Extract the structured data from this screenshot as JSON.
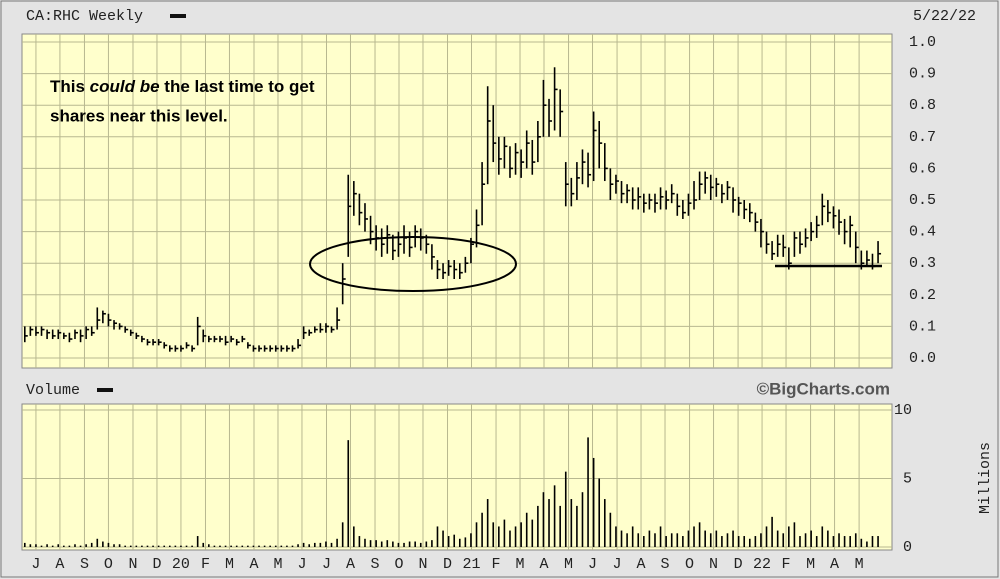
{
  "header": {
    "symbol": "CA:RHC Weekly",
    "date": "5/22/22"
  },
  "annotation": {
    "before": "This ",
    "emphasis": "could be",
    "after": " the last time to get",
    "line2": "shares near this level."
  },
  "chart_data": [
    {
      "type": "hlc",
      "color": "#000000",
      "background": "#ffffcc",
      "grid": true,
      "xlim": [
        0,
        156
      ],
      "ylim": [
        0,
        1
      ],
      "yticks": [
        {
          "value": 0,
          "label": "0.0"
        },
        0.1,
        0.2,
        0.3,
        0.4,
        0.5,
        0.6,
        0.7,
        0.8,
        0.9,
        {
          "value": 1,
          "label": "1.0"
        }
      ],
      "high": [
        0.1,
        0.1,
        0.1,
        0.1,
        0.09,
        0.09,
        0.09,
        0.08,
        0.08,
        0.09,
        0.09,
        0.1,
        0.1,
        0.16,
        0.15,
        0.14,
        0.12,
        0.11,
        0.1,
        0.09,
        0.08,
        0.07,
        0.06,
        0.06,
        0.06,
        0.05,
        0.04,
        0.04,
        0.04,
        0.05,
        0.04,
        0.13,
        0.09,
        0.07,
        0.07,
        0.07,
        0.07,
        0.07,
        0.06,
        0.07,
        0.05,
        0.04,
        0.04,
        0.04,
        0.04,
        0.04,
        0.04,
        0.04,
        0.04,
        0.06,
        0.1,
        0.09,
        0.1,
        0.11,
        0.11,
        0.1,
        0.16,
        0.3,
        0.58,
        0.56,
        0.52,
        0.49,
        0.45,
        0.42,
        0.41,
        0.42,
        0.39,
        0.4,
        0.42,
        0.4,
        0.42,
        0.41,
        0.39,
        0.36,
        0.31,
        0.3,
        0.31,
        0.31,
        0.3,
        0.32,
        0.38,
        0.47,
        0.62,
        0.86,
        0.8,
        0.7,
        0.7,
        0.67,
        0.68,
        0.66,
        0.72,
        0.69,
        0.75,
        0.88,
        0.82,
        0.92,
        0.85,
        0.62,
        0.57,
        0.62,
        0.66,
        0.65,
        0.78,
        0.75,
        0.68,
        0.6,
        0.58,
        0.56,
        0.55,
        0.54,
        0.54,
        0.52,
        0.52,
        0.52,
        0.54,
        0.53,
        0.55,
        0.52,
        0.5,
        0.52,
        0.56,
        0.59,
        0.59,
        0.58,
        0.57,
        0.55,
        0.56,
        0.54,
        0.51,
        0.5,
        0.49,
        0.46,
        0.44,
        0.4,
        0.37,
        0.39,
        0.39,
        0.35,
        0.4,
        0.4,
        0.41,
        0.43,
        0.45,
        0.52,
        0.5,
        0.48,
        0.47,
        0.44,
        0.45,
        0.4,
        0.34,
        0.34,
        0.33,
        0.37
      ],
      "low": [
        0.05,
        0.07,
        0.07,
        0.07,
        0.06,
        0.06,
        0.06,
        0.06,
        0.05,
        0.06,
        0.05,
        0.06,
        0.07,
        0.09,
        0.11,
        0.1,
        0.09,
        0.09,
        0.08,
        0.07,
        0.06,
        0.05,
        0.04,
        0.04,
        0.04,
        0.03,
        0.02,
        0.02,
        0.02,
        0.03,
        0.02,
        0.04,
        0.05,
        0.05,
        0.05,
        0.05,
        0.04,
        0.05,
        0.04,
        0.05,
        0.03,
        0.02,
        0.02,
        0.02,
        0.02,
        0.02,
        0.02,
        0.02,
        0.02,
        0.03,
        0.06,
        0.07,
        0.08,
        0.08,
        0.08,
        0.08,
        0.09,
        0.17,
        0.32,
        0.45,
        0.42,
        0.4,
        0.36,
        0.34,
        0.32,
        0.33,
        0.31,
        0.32,
        0.33,
        0.32,
        0.35,
        0.34,
        0.33,
        0.28,
        0.25,
        0.25,
        0.26,
        0.25,
        0.25,
        0.27,
        0.3,
        0.35,
        0.42,
        0.55,
        0.62,
        0.58,
        0.6,
        0.57,
        0.58,
        0.57,
        0.6,
        0.58,
        0.62,
        0.7,
        0.7,
        0.72,
        0.7,
        0.48,
        0.48,
        0.5,
        0.55,
        0.54,
        0.56,
        0.6,
        0.56,
        0.5,
        0.52,
        0.49,
        0.49,
        0.47,
        0.47,
        0.46,
        0.47,
        0.46,
        0.47,
        0.47,
        0.49,
        0.45,
        0.44,
        0.45,
        0.47,
        0.5,
        0.52,
        0.5,
        0.51,
        0.49,
        0.5,
        0.46,
        0.45,
        0.44,
        0.43,
        0.4,
        0.35,
        0.33,
        0.31,
        0.32,
        0.32,
        0.28,
        0.32,
        0.33,
        0.35,
        0.37,
        0.38,
        0.42,
        0.43,
        0.41,
        0.39,
        0.36,
        0.35,
        0.3,
        0.28,
        0.29,
        0.28,
        0.3
      ],
      "close": [
        0.07,
        0.09,
        0.08,
        0.09,
        0.08,
        0.07,
        0.08,
        0.07,
        0.06,
        0.08,
        0.07,
        0.09,
        0.08,
        0.12,
        0.14,
        0.12,
        0.11,
        0.1,
        0.09,
        0.08,
        0.07,
        0.06,
        0.05,
        0.05,
        0.05,
        0.04,
        0.03,
        0.03,
        0.03,
        0.04,
        0.03,
        0.1,
        0.07,
        0.06,
        0.06,
        0.06,
        0.05,
        0.06,
        0.05,
        0.06,
        0.04,
        0.03,
        0.03,
        0.03,
        0.03,
        0.03,
        0.03,
        0.03,
        0.03,
        0.04,
        0.08,
        0.08,
        0.09,
        0.09,
        0.1,
        0.09,
        0.12,
        0.25,
        0.48,
        0.52,
        0.46,
        0.44,
        0.4,
        0.38,
        0.36,
        0.39,
        0.34,
        0.36,
        0.38,
        0.35,
        0.4,
        0.38,
        0.36,
        0.32,
        0.28,
        0.27,
        0.29,
        0.28,
        0.27,
        0.3,
        0.36,
        0.42,
        0.55,
        0.75,
        0.68,
        0.63,
        0.67,
        0.6,
        0.65,
        0.62,
        0.68,
        0.62,
        0.7,
        0.8,
        0.75,
        0.85,
        0.78,
        0.55,
        0.52,
        0.57,
        0.62,
        0.58,
        0.72,
        0.68,
        0.6,
        0.55,
        0.56,
        0.52,
        0.53,
        0.5,
        0.51,
        0.49,
        0.5,
        0.49,
        0.51,
        0.5,
        0.52,
        0.48,
        0.46,
        0.49,
        0.5,
        0.55,
        0.57,
        0.54,
        0.55,
        0.52,
        0.54,
        0.5,
        0.49,
        0.47,
        0.46,
        0.43,
        0.4,
        0.36,
        0.33,
        0.36,
        0.35,
        0.3,
        0.38,
        0.36,
        0.38,
        0.4,
        0.42,
        0.48,
        0.46,
        0.45,
        0.43,
        0.4,
        0.42,
        0.35,
        0.3,
        0.31,
        0.29,
        0.33
      ]
    },
    {
      "type": "bar",
      "title": "Volume",
      "source": "©BigCharts.com",
      "ylabel": "Millions",
      "color": "#000000",
      "background": "#ffffcc",
      "grid": true,
      "xlim": [
        0,
        156
      ],
      "ylim": [
        0,
        10
      ],
      "yticks": [
        0,
        5,
        10
      ],
      "xticks": [
        {
          "value": 2.5,
          "label": "J"
        },
        {
          "value": 6.8,
          "label": "A"
        },
        {
          "value": 11.2,
          "label": "S"
        },
        {
          "value": 15.5,
          "label": "O"
        },
        {
          "value": 19.9,
          "label": "N"
        },
        {
          "value": 24.2,
          "label": "D"
        },
        {
          "value": 28.5,
          "label": "20"
        },
        {
          "value": 32.9,
          "label": "F"
        },
        {
          "value": 37.2,
          "label": "M"
        },
        {
          "value": 41.6,
          "label": "A"
        },
        {
          "value": 45.9,
          "label": "M"
        },
        {
          "value": 50.2,
          "label": "J"
        },
        {
          "value": 54.6,
          "label": "J"
        },
        {
          "value": 58.9,
          "label": "A"
        },
        {
          "value": 63.3,
          "label": "S"
        },
        {
          "value": 67.6,
          "label": "O"
        },
        {
          "value": 71.9,
          "label": "N"
        },
        {
          "value": 76.3,
          "label": "D"
        },
        {
          "value": 80.6,
          "label": "21"
        },
        {
          "value": 85.0,
          "label": "F"
        },
        {
          "value": 89.3,
          "label": "M"
        },
        {
          "value": 93.6,
          "label": "A"
        },
        {
          "value": 98.0,
          "label": "M"
        },
        {
          "value": 102.3,
          "label": "J"
        },
        {
          "value": 106.7,
          "label": "J"
        },
        {
          "value": 111.0,
          "label": "A"
        },
        {
          "value": 115.3,
          "label": "S"
        },
        {
          "value": 119.7,
          "label": "O"
        },
        {
          "value": 124.0,
          "label": "N"
        },
        {
          "value": 128.4,
          "label": "D"
        },
        {
          "value": 132.7,
          "label": "22"
        },
        {
          "value": 137.0,
          "label": "F"
        },
        {
          "value": 141.4,
          "label": "M"
        },
        {
          "value": 145.7,
          "label": "A"
        },
        {
          "value": 150.1,
          "label": "M"
        }
      ],
      "values": [
        0.3,
        0.2,
        0.2,
        0.1,
        0.2,
        0.1,
        0.2,
        0.1,
        0.1,
        0.2,
        0.1,
        0.2,
        0.3,
        0.6,
        0.4,
        0.3,
        0.2,
        0.2,
        0.1,
        0.1,
        0.1,
        0.1,
        0.1,
        0.1,
        0.1,
        0.1,
        0.1,
        0.1,
        0.1,
        0.1,
        0.1,
        0.8,
        0.3,
        0.2,
        0.1,
        0.1,
        0.1,
        0.1,
        0.1,
        0.1,
        0.1,
        0.1,
        0.1,
        0.1,
        0.1,
        0.1,
        0.1,
        0.1,
        0.1,
        0.2,
        0.3,
        0.2,
        0.3,
        0.3,
        0.4,
        0.3,
        0.6,
        1.8,
        7.8,
        1.5,
        0.8,
        0.6,
        0.5,
        0.5,
        0.4,
        0.5,
        0.4,
        0.3,
        0.3,
        0.4,
        0.4,
        0.3,
        0.4,
        0.5,
        1.5,
        1.2,
        0.8,
        0.9,
        0.6,
        0.7,
        1.0,
        1.8,
        2.5,
        3.5,
        1.8,
        1.5,
        2.0,
        1.2,
        1.5,
        1.8,
        2.5,
        2.0,
        3.0,
        4.0,
        3.5,
        4.5,
        3.0,
        5.5,
        3.5,
        3.0,
        4.0,
        8.0,
        6.5,
        5.0,
        3.5,
        2.5,
        1.5,
        1.2,
        1.0,
        1.5,
        1.0,
        0.8,
        1.2,
        1.0,
        1.5,
        0.8,
        1.0,
        1.0,
        0.8,
        1.2,
        1.5,
        1.8,
        1.2,
        1.0,
        1.2,
        0.8,
        1.0,
        1.2,
        0.8,
        0.8,
        0.6,
        0.8,
        1.0,
        1.5,
        2.2,
        1.2,
        1.0,
        1.5,
        1.8,
        0.8,
        1.0,
        1.2,
        0.8,
        1.5,
        1.2,
        0.8,
        1.0,
        0.8,
        0.8,
        1.0,
        0.6,
        0.4,
        0.8,
        0.8
      ]
    }
  ]
}
